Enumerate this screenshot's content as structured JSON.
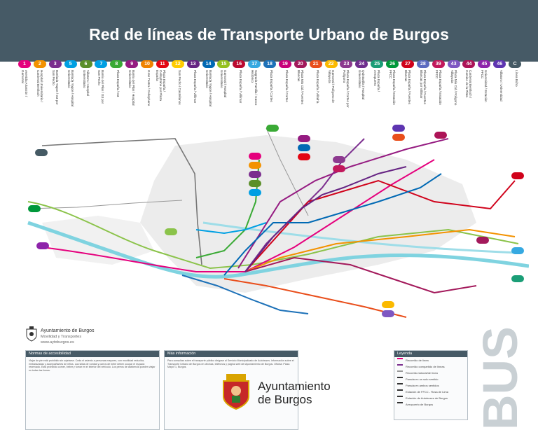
{
  "header": {
    "title": "Red de líneas de Transporte Urbano de Burgos"
  },
  "lines": [
    {
      "num": "1",
      "color": "#e5007d",
      "label": "Avenida Arlanzón / Gamonal"
    },
    {
      "num": "2",
      "color": "#f39200",
      "label": "Hospital Universitario / Cardenal Benlloch"
    },
    {
      "num": "3",
      "color": "#7b2d8e",
      "label": "Barriada Yagüe / G3 por San Pedro"
    },
    {
      "num": "5",
      "color": "#00a0e3",
      "label": "Barriada Yagüe / Hospital Universitario"
    },
    {
      "num": "6",
      "color": "#5b8f29",
      "label": "Villatoro / Hospital Universitario"
    },
    {
      "num": "7",
      "color": "#009fe3",
      "label": "Barrio del Pilar / G3 por San Pedro"
    },
    {
      "num": "8",
      "color": "#3aaa35",
      "label": "Plaza España / G3"
    },
    {
      "num": "9",
      "color": "#951b81",
      "label": "Barrio del Pilar / Hospital Universitario"
    },
    {
      "num": "10",
      "color": "#f08300",
      "label": "Gran Teatro / Cellophane"
    },
    {
      "num": "11",
      "color": "#e30613",
      "label": "Plaza España / Cellophane por Plaza España"
    },
    {
      "num": "12",
      "color": "#ffcc00",
      "label": "San Pedro / Castellanos"
    },
    {
      "num": "13",
      "color": "#662483",
      "label": "Plaza España / Villimar"
    },
    {
      "num": "14",
      "color": "#0069b4",
      "label": "Barriada Yagüe / Hospital Universitario"
    },
    {
      "num": "15",
      "color": "#95c11f",
      "label": "Gamonal / Hospital Universitario"
    },
    {
      "num": "16",
      "color": "#bb0a30",
      "label": "Plaza España / Villimar"
    },
    {
      "num": "17",
      "color": "#36a9e1",
      "label": "Sagrada Familia / Casco Histórico"
    },
    {
      "num": "18",
      "color": "#1d71b8",
      "label": "Plaza España / Cortes"
    },
    {
      "num": "19",
      "color": "#c8007a",
      "label": "Plaza España / Cortes"
    },
    {
      "num": "20",
      "color": "#a3195b",
      "label": "Plaza Mio Cid / Fuentes Blancas"
    },
    {
      "num": "21",
      "color": "#e94e1b",
      "label": "Plaza España / Villafría"
    },
    {
      "num": "22",
      "color": "#fbba00",
      "label": "Gamonal / Polígono de Villayuda"
    },
    {
      "num": "23",
      "color": "#8d3a8f",
      "label": "Plaza España / Cortes por Polígono"
    },
    {
      "num": "24",
      "color": "#6f2e8d",
      "label": "Quintanilla / Hospital Universitario"
    },
    {
      "num": "25",
      "color": "#1b9e77",
      "label": "Plaza España / Aeropuerto"
    },
    {
      "num": "26",
      "color": "#00983a",
      "label": "Plaza España / Estación FFCC"
    },
    {
      "num": "27",
      "color": "#d0021b",
      "label": "Plaza España / Fuentes Blancas"
    },
    {
      "num": "28",
      "color": "#5c6bc0",
      "label": "Plaza España / Fuentes Blancas por Villimar"
    },
    {
      "num": "39",
      "color": "#c2185b",
      "label": "Plaza España / Estación FFCC"
    },
    {
      "num": "43",
      "color": "#7e57c2",
      "label": "Plaza Mio Cid / Polígono Villayuda"
    },
    {
      "num": "44",
      "color": "#ad1457",
      "label": "Cardenal Benlloch / Camino de la Plata"
    },
    {
      "num": "45",
      "color": "#8e24aa",
      "label": "Universidad / Estación FFCC"
    },
    {
      "num": "46",
      "color": "#5e35b1",
      "label": "Villatoro / Universidad"
    },
    {
      "num": "C",
      "color": "#455a64",
      "label": "Línea Búho"
    }
  ],
  "legend": {
    "title": "Leyenda",
    "items": [
      "Recorrido de línea",
      "Recorrido compartido de líneas",
      "Recorrido laboral/de línea",
      "Parada en un solo sentido",
      "Parada en ambos sentidos",
      "Estación de FFCC - Rosa de Lima",
      "Estación de Autobuses de Burgos",
      "Aeropuerto de Burgos"
    ]
  },
  "info_boxes": [
    {
      "title": "Normas de accesibilidad",
      "text": "Viajar de pie está prohibido sin sujetarse. Ceda el asiento a personas mayores, con movilidad reducida, embarazadas y acompañantes de niños. Las sillas de ruedas y carros de bebé deben ocupar el espacio reservado. Está prohibido comer, beber y fumar en el interior del vehículo. Los perros de asistencia pueden viajar en todas las líneas."
    },
    {
      "title": "Más información",
      "text": "Para consultas sobre el transporte público dirígase al Servicio Municipalizado de Autobuses. Información sobre el Transporte Urbano de Burgos en oficinas, teléfonos y página web del Ayuntamiento de Burgos. Oficina: Plaza Mayor 1, Burgos."
    }
  ],
  "org": {
    "name_small": "Ayuntamiento de Burgos",
    "dept": "Movilidad y Transportes",
    "web": "www.aytoburgos.es",
    "name_big_line1": "Ayuntamiento",
    "name_big_line2": "de Burgos"
  },
  "bus_text": "BUS",
  "colors": {
    "header": "#465a66",
    "river": "#7fd3e0",
    "bus_text": "#c9d0d4"
  }
}
